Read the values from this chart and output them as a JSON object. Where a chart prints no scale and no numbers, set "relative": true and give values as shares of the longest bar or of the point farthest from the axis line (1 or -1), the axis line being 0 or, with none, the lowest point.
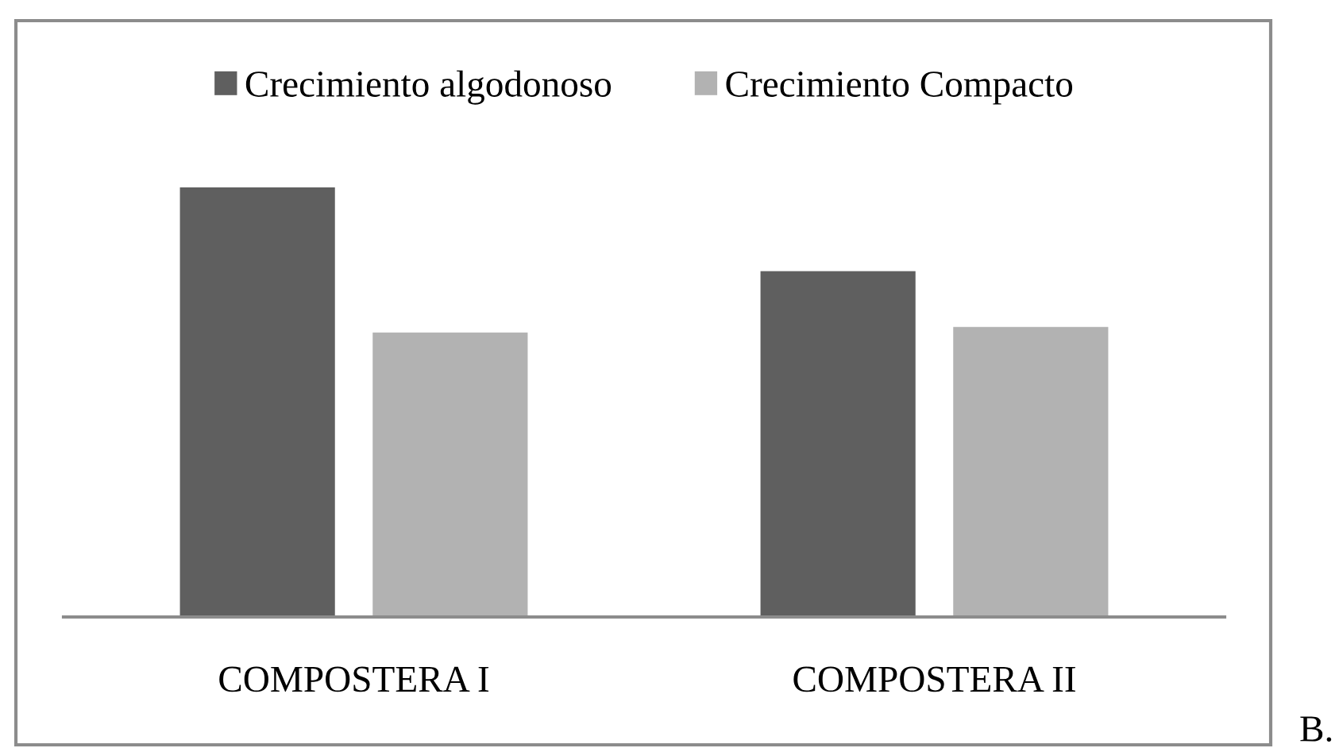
{
  "chart_data": {
    "type": "bar",
    "categories": [
      "COMPOSTERA I",
      "COMPOSTERA II"
    ],
    "series": [
      {
        "name": "Crecimiento algodonoso",
        "color": "#5f5f5f",
        "values": [
          1,
          0.805
        ]
      },
      {
        "name": "Crecimiento Compacto",
        "color": "#b2b2b2",
        "values": [
          0.662,
          0.675
        ]
      }
    ],
    "relative": true,
    "legend": "top",
    "annotations": [
      "B."
    ]
  }
}
